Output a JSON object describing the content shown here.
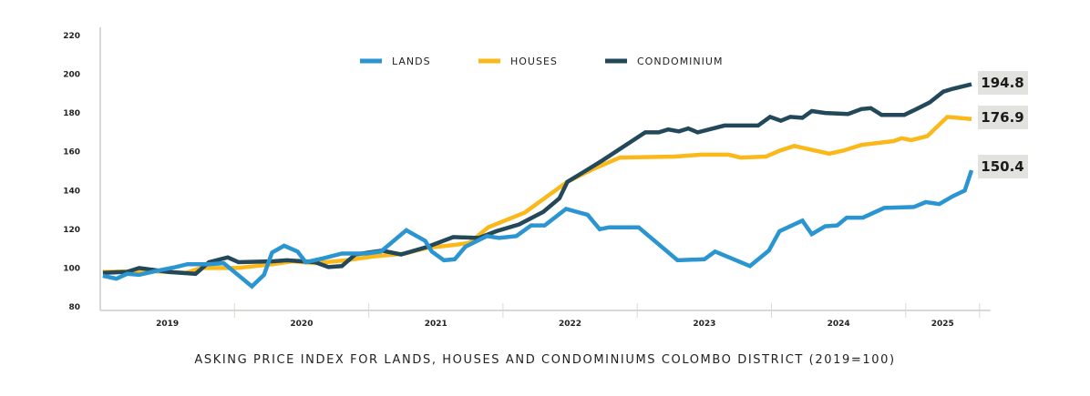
{
  "chart_data": {
    "type": "line",
    "title": "ASKING PRICE INDEX FOR LANDS, HOUSES AND CONDOMINIUMS COLOMBO DISTRICT (2019=100)",
    "xlabel": "",
    "ylabel": "",
    "ylim": [
      80,
      220
    ],
    "yticks": [
      80,
      100,
      120,
      140,
      160,
      180,
      200,
      220
    ],
    "xlim": [
      2019,
      2025.55
    ],
    "xtick_labels": [
      "2019",
      "2020",
      "2021",
      "2022",
      "2023",
      "2024",
      "2025"
    ],
    "grid": false,
    "legend_position": "top-center",
    "series": [
      {
        "name": "LANDS",
        "color": "#2a95d0",
        "end_label": "150.4",
        "points": [
          [
            2019.02,
            96
          ],
          [
            2019.12,
            94.5
          ],
          [
            2019.2,
            97
          ],
          [
            2019.29,
            96.5
          ],
          [
            2019.42,
            98.5
          ],
          [
            2019.56,
            100.5
          ],
          [
            2019.65,
            102
          ],
          [
            2019.81,
            102
          ],
          [
            2019.92,
            102.5
          ],
          [
            2020.13,
            90.5
          ],
          [
            2020.22,
            96.5
          ],
          [
            2020.28,
            108
          ],
          [
            2020.37,
            111.5
          ],
          [
            2020.47,
            108.5
          ],
          [
            2020.53,
            103
          ],
          [
            2020.66,
            105
          ],
          [
            2020.8,
            107.5
          ],
          [
            2020.98,
            107.5
          ],
          [
            2021.09,
            108.5
          ],
          [
            2021.28,
            119.5
          ],
          [
            2021.42,
            114
          ],
          [
            2021.47,
            108.5
          ],
          [
            2021.56,
            104
          ],
          [
            2021.64,
            104.5
          ],
          [
            2021.72,
            111
          ],
          [
            2021.88,
            116.5
          ],
          [
            2021.97,
            115.5
          ],
          [
            2022.1,
            116.5
          ],
          [
            2022.21,
            122
          ],
          [
            2022.31,
            122
          ],
          [
            2022.47,
            130.5
          ],
          [
            2022.63,
            127.5
          ],
          [
            2022.72,
            120
          ],
          [
            2022.79,
            121
          ],
          [
            2023.01,
            121
          ],
          [
            2023.3,
            104
          ],
          [
            2023.5,
            104.5
          ],
          [
            2023.58,
            108.5
          ],
          [
            2023.84,
            101
          ],
          [
            2023.98,
            109
          ],
          [
            2024.06,
            119
          ],
          [
            2024.23,
            124.5
          ],
          [
            2024.3,
            117.5
          ],
          [
            2024.4,
            121.5
          ],
          [
            2024.49,
            122
          ],
          [
            2024.56,
            126
          ],
          [
            2024.68,
            126
          ],
          [
            2024.84,
            131
          ],
          [
            2025.06,
            131.5
          ],
          [
            2025.15,
            134
          ],
          [
            2025.25,
            133
          ],
          [
            2025.35,
            137
          ],
          [
            2025.44,
            140
          ],
          [
            2025.49,
            150.4
          ]
        ]
      },
      {
        "name": "HOUSES",
        "color": "#fbb81a",
        "end_label": "176.9",
        "points": [
          [
            2019.02,
            98
          ],
          [
            2019.34,
            98.5
          ],
          [
            2019.64,
            97.5
          ],
          [
            2019.75,
            100
          ],
          [
            2020.02,
            100
          ],
          [
            2020.29,
            102
          ],
          [
            2020.43,
            103.5
          ],
          [
            2020.6,
            102.5
          ],
          [
            2020.83,
            104
          ],
          [
            2021.04,
            106
          ],
          [
            2021.27,
            107.5
          ],
          [
            2021.44,
            110.5
          ],
          [
            2021.65,
            112
          ],
          [
            2021.75,
            113
          ],
          [
            2021.89,
            121
          ],
          [
            2022.16,
            128.5
          ],
          [
            2022.33,
            137
          ],
          [
            2022.48,
            144.5
          ],
          [
            2022.67,
            151
          ],
          [
            2022.87,
            157
          ],
          [
            2023.28,
            157.5
          ],
          [
            2023.48,
            158.5
          ],
          [
            2023.68,
            158.5
          ],
          [
            2023.77,
            157
          ],
          [
            2023.96,
            157.5
          ],
          [
            2024.06,
            160.5
          ],
          [
            2024.17,
            163
          ],
          [
            2024.43,
            159
          ],
          [
            2024.53,
            160.5
          ],
          [
            2024.67,
            163.5
          ],
          [
            2024.91,
            165.5
          ],
          [
            2024.97,
            167
          ],
          [
            2025.04,
            166
          ],
          [
            2025.16,
            168
          ],
          [
            2025.31,
            178
          ],
          [
            2025.49,
            176.9
          ]
        ]
      },
      {
        "name": "CONDOMINIUM",
        "color": "#22485a",
        "end_label": "194.8",
        "points": [
          [
            2019.02,
            97.5
          ],
          [
            2019.2,
            98
          ],
          [
            2019.29,
            100
          ],
          [
            2019.51,
            98
          ],
          [
            2019.71,
            97
          ],
          [
            2019.81,
            103
          ],
          [
            2019.95,
            105.5
          ],
          [
            2020.03,
            103
          ],
          [
            2020.29,
            103.5
          ],
          [
            2020.39,
            104
          ],
          [
            2020.6,
            103
          ],
          [
            2020.7,
            100.5
          ],
          [
            2020.8,
            101
          ],
          [
            2020.9,
            107
          ],
          [
            2021.1,
            109
          ],
          [
            2021.24,
            107
          ],
          [
            2021.44,
            111
          ],
          [
            2021.63,
            116
          ],
          [
            2021.82,
            115.5
          ],
          [
            2021.95,
            119
          ],
          [
            2022.12,
            122.5
          ],
          [
            2022.3,
            129
          ],
          [
            2022.42,
            136
          ],
          [
            2022.48,
            144.5
          ],
          [
            2022.6,
            149.5
          ],
          [
            2022.74,
            155.5
          ],
          [
            2023.06,
            170
          ],
          [
            2023.16,
            170
          ],
          [
            2023.23,
            171.5
          ],
          [
            2023.31,
            170.5
          ],
          [
            2023.38,
            172
          ],
          [
            2023.45,
            170
          ],
          [
            2023.65,
            173.5
          ],
          [
            2023.9,
            173.5
          ],
          [
            2023.99,
            178
          ],
          [
            2024.07,
            176
          ],
          [
            2024.14,
            178
          ],
          [
            2024.23,
            177.5
          ],
          [
            2024.3,
            181
          ],
          [
            2024.4,
            180
          ],
          [
            2024.57,
            179.5
          ],
          [
            2024.67,
            182
          ],
          [
            2024.74,
            182.5
          ],
          [
            2024.82,
            179
          ],
          [
            2024.99,
            179
          ],
          [
            2025.08,
            182
          ],
          [
            2025.18,
            185.5
          ],
          [
            2025.28,
            191
          ],
          [
            2025.35,
            192.5
          ],
          [
            2025.49,
            194.8
          ]
        ]
      }
    ]
  }
}
